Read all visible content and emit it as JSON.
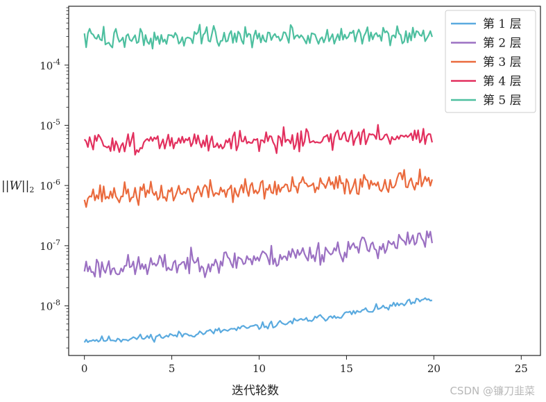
{
  "chart_data": {
    "type": "line",
    "title": "",
    "xlabel": "迭代轮数",
    "ylabel": "||W||",
    "ylabel_sub": "2",
    "xlim": [
      -0.9,
      26.1
    ],
    "ylim": [
      1.5e-09,
      0.00095
    ],
    "yscale": "log",
    "xticks": [
      0,
      5,
      10,
      15,
      20,
      25
    ],
    "yticks": [
      {
        "exp": "-8"
      },
      {
        "exp": "-7"
      },
      {
        "exp": "-6"
      },
      {
        "exp": "-5"
      },
      {
        "exp": "-4"
      }
    ],
    "grid": false,
    "legend_position": "top-right",
    "series": [
      {
        "name": "第 1 层",
        "color": "#5aaadf",
        "start": 2.7e-09,
        "end": 1.3e-08,
        "noise": 0.03,
        "seed": 11
      },
      {
        "name": "第 2 层",
        "color": "#9b70c2",
        "start": 4.3e-08,
        "end": 1.3e-07,
        "noise": 0.095,
        "seed": 23
      },
      {
        "name": "第 3 层",
        "color": "#ea6a3d",
        "start": 7e-07,
        "end": 1.3e-06,
        "noise": 0.09,
        "seed": 37
      },
      {
        "name": "第 4 层",
        "color": "#e2305e",
        "start": 5e-06,
        "end": 7e-06,
        "noise": 0.085,
        "seed": 51
      },
      {
        "name": "第 5 层",
        "color": "#4dbf9f",
        "start": 0.00028,
        "end": 0.00031,
        "noise": 0.085,
        "seed": 73
      }
    ]
  },
  "watermark": "CSDN @镰刀韭菜"
}
